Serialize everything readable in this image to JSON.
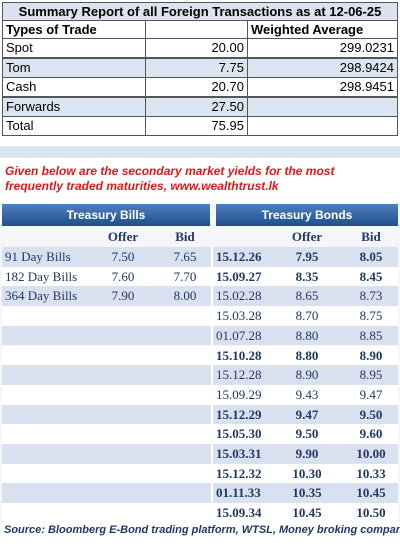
{
  "summary": {
    "title": "Summary Report of all Foreign Transactions as at 12-06-25",
    "header": {
      "type": "Types of Trade",
      "weighted_average": "Weighted Average"
    },
    "rows": [
      {
        "type": "Spot",
        "volume": "20.00",
        "weighted_average": "299.0231"
      },
      {
        "type": "Tom",
        "volume": "7.75",
        "weighted_average": "298.9424"
      },
      {
        "type": "Cash",
        "volume": "20.70",
        "weighted_average": "298.9451"
      },
      {
        "type": "Forwards",
        "volume": "27.50"
      },
      {
        "type": "Total",
        "volume": "75.95"
      }
    ]
  },
  "note": "Given below are the secondary market yields for the most frequently traded maturities, www.wealthtrust.lk",
  "yields": {
    "bills_title": "Treasury Bills",
    "bonds_title": "Treasury Bonds",
    "offer": "Offer",
    "bid": "Bid",
    "bills": [
      {
        "name": "91 Day Bills",
        "offer": "7.50",
        "bid": "7.65"
      },
      {
        "name": "182 Day Bills",
        "offer": "7.60",
        "bid": "7.70"
      },
      {
        "name": "364 Day Bills",
        "offer": "7.90",
        "bid": "8.00"
      }
    ],
    "bonds": [
      {
        "maturity": "15.12.26",
        "offer": "7.95",
        "bid": "8.05",
        "bold": true
      },
      {
        "maturity": "15.09.27",
        "offer": "8.35",
        "bid": "8.45",
        "bold": true
      },
      {
        "maturity": "15.02.28",
        "offer": "8.65",
        "bid": "8.73",
        "bold": false
      },
      {
        "maturity": "15.03.28",
        "offer": "8.70",
        "bid": "8.75",
        "bold": false
      },
      {
        "maturity": "01.07.28",
        "offer": "8.80",
        "bid": "8.85",
        "bold": false
      },
      {
        "maturity": "15.10.28",
        "offer": "8.80",
        "bid": "8.90",
        "bold": true
      },
      {
        "maturity": "15.12.28",
        "offer": "8.90",
        "bid": "8.95",
        "bold": false
      },
      {
        "maturity": "15.09.29",
        "offer": "9.43",
        "bid": "9.47",
        "bold": false
      },
      {
        "maturity": "15.12.29",
        "offer": "9.47",
        "bid": "9.50",
        "bold": true
      },
      {
        "maturity": "15.05.30",
        "offer": "9.50",
        "bid": "9.60",
        "bold": true
      },
      {
        "maturity": "15.03.31",
        "offer": "9.90",
        "bid": "10.00",
        "bold": true
      },
      {
        "maturity": "15.12.32",
        "offer": "10.30",
        "bid": "10.33",
        "bold": true
      },
      {
        "maturity": "01.11.33",
        "offer": "10.35",
        "bid": "10.45",
        "bold": true
      },
      {
        "maturity": "15.09.34",
        "offer": "10.45",
        "bid": "10.50",
        "bold": true
      }
    ]
  },
  "source": "Source: Bloomberg E-Bond trading platform, WTSL, Money broking companies"
}
